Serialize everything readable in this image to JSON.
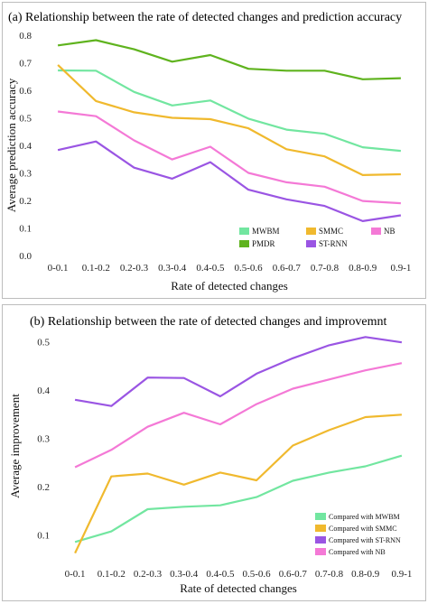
{
  "chart_data": [
    {
      "type": "line",
      "title": "(a) Relationship between the rate of detected changes and prediction accuracy",
      "xlabel": "Rate of detected changes",
      "ylabel": "Average prediction accuracy",
      "categories": [
        "0-0.1",
        "0.1-0.2",
        "0.2-0.3",
        "0.3-0.4",
        "0.4-0.5",
        "0.5-0.6",
        "0.6-0.7",
        "0.7-0.8",
        "0.8-0.9",
        "0.9-1"
      ],
      "ylim": [
        0,
        0.8
      ],
      "yticks": [
        "0.0",
        "0.1",
        "0.2",
        "0.3",
        "0.4",
        "0.5",
        "0.6",
        "0.7",
        "0.8"
      ],
      "grid": false,
      "legend_position": "bottom-right",
      "series": [
        {
          "name": "MWBM",
          "color": "#72e6a0",
          "values": [
            0.672,
            0.671,
            0.594,
            0.545,
            0.563,
            0.497,
            0.457,
            0.442,
            0.393,
            0.38
          ]
        },
        {
          "name": "SMMC",
          "color": "#f0b92e",
          "values": [
            0.692,
            0.561,
            0.52,
            0.5,
            0.495,
            0.462,
            0.386,
            0.36,
            0.292,
            0.295
          ]
        },
        {
          "name": "NB",
          "color": "#f479d6",
          "values": [
            0.523,
            0.506,
            0.418,
            0.349,
            0.395,
            0.3,
            0.266,
            0.25,
            0.198,
            0.19
          ]
        },
        {
          "name": "PMDR",
          "color": "#5fb31e",
          "values": [
            0.763,
            0.782,
            0.749,
            0.704,
            0.728,
            0.678,
            0.671,
            0.671,
            0.64,
            0.644
          ]
        },
        {
          "name": "ST-RNN",
          "color": "#9a55e3",
          "values": [
            0.383,
            0.414,
            0.319,
            0.279,
            0.339,
            0.239,
            0.204,
            0.18,
            0.125,
            0.146
          ]
        }
      ]
    },
    {
      "type": "line",
      "title": "(b) Relationship between the rate of detected changes and improvemnt",
      "xlabel": "Rate of detected changes",
      "ylabel": "Average improvement",
      "categories": [
        "0-0.1",
        "0.1-0.2",
        "0.2-0.3",
        "0.3-0.4",
        "0.4-0.5",
        "0.5-0.6",
        "0.6-0.7",
        "0.7-0.8",
        "0.8-0.9",
        "0.9-1"
      ],
      "ylim": [
        0.05,
        0.52
      ],
      "yticks": [
        "0.1",
        "0.2",
        "0.3",
        "0.4",
        "0.5"
      ],
      "grid": false,
      "legend_position": "bottom-right",
      "series": [
        {
          "name": "Compared with MWBM",
          "color": "#72e6a0",
          "values": [
            0.085,
            0.107,
            0.153,
            0.158,
            0.161,
            0.178,
            0.212,
            0.229,
            0.242,
            0.264
          ]
        },
        {
          "name": "Compared with SMMC",
          "color": "#f0b92e",
          "values": [
            0.062,
            0.221,
            0.227,
            0.204,
            0.229,
            0.213,
            0.285,
            0.317,
            0.344,
            0.349
          ]
        },
        {
          "name": "Compared with ST-RNN",
          "color": "#9a55e3",
          "values": [
            0.38,
            0.367,
            0.426,
            0.425,
            0.387,
            0.434,
            0.466,
            0.493,
            0.51,
            0.499
          ]
        },
        {
          "name": "Compared with NB",
          "color": "#f479d6",
          "values": [
            0.24,
            0.276,
            0.324,
            0.353,
            0.329,
            0.371,
            0.403,
            0.422,
            0.441,
            0.456
          ]
        }
      ]
    }
  ]
}
